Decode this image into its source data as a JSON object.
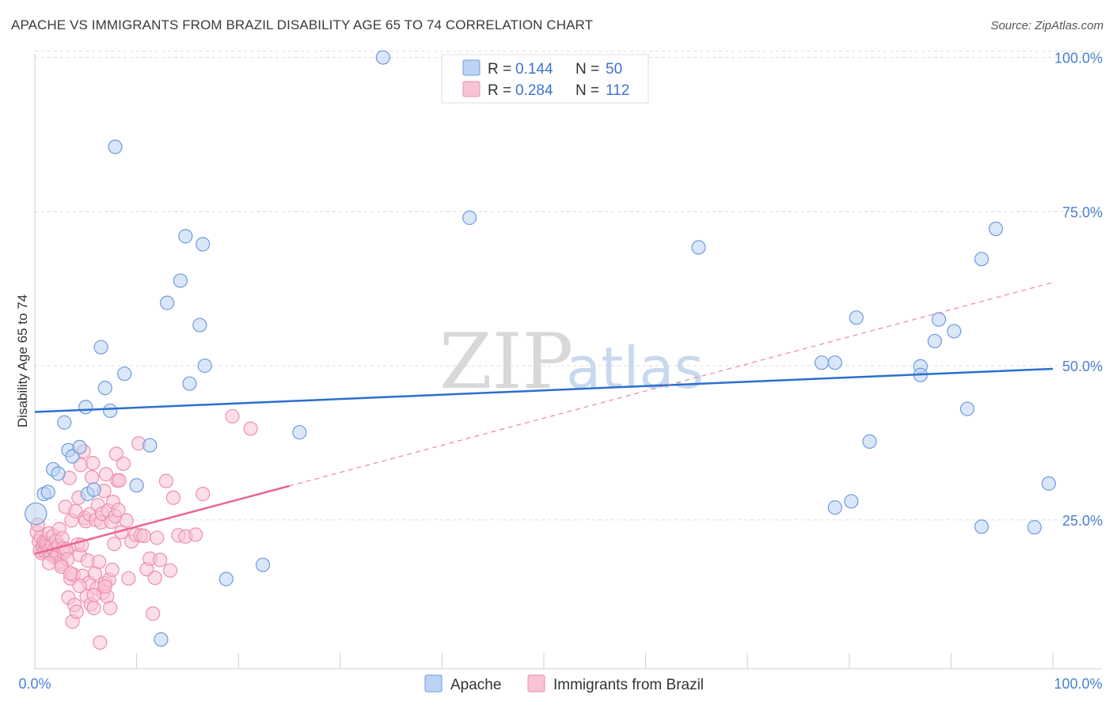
{
  "title": "APACHE VS IMMIGRANTS FROM BRAZIL DISABILITY AGE 65 TO 74 CORRELATION CHART",
  "source": "Source: ZipAtlas.com",
  "watermark": {
    "zip": "ZIP",
    "atlas": "atlas"
  },
  "legend": {
    "rows": [
      {
        "r_label": "R =",
        "r_value": "0.144",
        "n_label": "N =",
        "n_value": "50"
      },
      {
        "r_label": "R =",
        "r_value": "0.284",
        "n_label": "N =",
        "n_value": "112"
      }
    ]
  },
  "bottom_legend": {
    "series1": "Apache",
    "series2": "Immigrants from Brazil"
  },
  "colors": {
    "apache_fill": "#bcd3f3",
    "apache_stroke": "#6d9be0",
    "apache_line": "#2c6fcf",
    "brazil_fill": "#f8c3d4",
    "brazil_stroke": "#ee8fae",
    "brazil_line": "#e8688f"
  },
  "chart_data": {
    "type": "scatter",
    "title": "APACHE VS IMMIGRANTS FROM BRAZIL DISABILITY AGE 65 TO 74 CORRELATION CHART",
    "xlabel": "",
    "ylabel": "Disability Age 65 to 74",
    "xlim": [
      0,
      100
    ],
    "ylim": [
      2,
      102
    ],
    "x_tick_labels": [
      "0.0%",
      "100.0%"
    ],
    "y_ticks": [
      25,
      50,
      75,
      100
    ],
    "y_tick_labels": [
      "25.0%",
      "50.0%",
      "75.0%",
      "100.0%"
    ],
    "series": [
      {
        "name": "Apache",
        "R": 0.144,
        "N": 50,
        "trend": {
          "x": [
            0,
            100
          ],
          "y": [
            42.5,
            49.5
          ],
          "dashed_extension": false
        },
        "points": [
          [
            0.1,
            26.0,
            1.6
          ],
          [
            0.9,
            29.2,
            1
          ],
          [
            1.3,
            29.5,
            1
          ],
          [
            1.8,
            33.2,
            1
          ],
          [
            2.3,
            32.5,
            1
          ],
          [
            2.9,
            40.8,
            1
          ],
          [
            3.3,
            36.3,
            1
          ],
          [
            3.7,
            35.3,
            1
          ],
          [
            4.4,
            36.8,
            1
          ],
          [
            5.0,
            43.3,
            1
          ],
          [
            5.2,
            29.2,
            1
          ],
          [
            5.8,
            29.9,
            1
          ],
          [
            6.5,
            53.0,
            1
          ],
          [
            6.9,
            46.4,
            1
          ],
          [
            7.4,
            42.7,
            1
          ],
          [
            7.9,
            85.5,
            1
          ],
          [
            8.8,
            48.7,
            1
          ],
          [
            10.0,
            30.6,
            1
          ],
          [
            11.3,
            37.1,
            1
          ],
          [
            12.4,
            5.6,
            1
          ],
          [
            13.0,
            60.2,
            1
          ],
          [
            14.3,
            63.8,
            1
          ],
          [
            14.8,
            71.0,
            1
          ],
          [
            15.2,
            47.1,
            1
          ],
          [
            16.5,
            69.7,
            1
          ],
          [
            16.2,
            56.6,
            1
          ],
          [
            16.7,
            50.0,
            1
          ],
          [
            18.8,
            15.4,
            1
          ],
          [
            22.4,
            17.7,
            1
          ],
          [
            26.0,
            39.2,
            1
          ],
          [
            34.2,
            100.0,
            1
          ],
          [
            42.7,
            74.0,
            1
          ],
          [
            65.2,
            69.2,
            1
          ],
          [
            77.3,
            50.5,
            1
          ],
          [
            78.6,
            50.5,
            1
          ],
          [
            78.6,
            27.0,
            1
          ],
          [
            80.2,
            28.0,
            1
          ],
          [
            80.7,
            57.8,
            1
          ],
          [
            82.0,
            37.7,
            1
          ],
          [
            87.0,
            49.9,
            1
          ],
          [
            87.0,
            48.5,
            1
          ],
          [
            88.4,
            54.0,
            1
          ],
          [
            88.8,
            57.5,
            1
          ],
          [
            90.3,
            55.6,
            1
          ],
          [
            91.6,
            43.0,
            1
          ],
          [
            93.0,
            67.3,
            1
          ],
          [
            93.0,
            23.9,
            1
          ],
          [
            94.4,
            72.2,
            1
          ],
          [
            98.2,
            23.8,
            1
          ],
          [
            99.6,
            30.9,
            1
          ]
        ]
      },
      {
        "name": "Immigrants from Brazil",
        "R": 0.284,
        "N": 112,
        "trend": {
          "x": [
            0,
            25
          ],
          "y": [
            19.5,
            30.5
          ],
          "dashed_x": [
            25,
            100
          ],
          "dashed_y": [
            30.5,
            63.5
          ]
        },
        "points": [
          [
            0.2,
            23.0,
            1
          ],
          [
            0.4,
            21.5,
            1
          ],
          [
            0.5,
            20.0,
            1
          ],
          [
            0.6,
            22.2,
            1
          ],
          [
            0.7,
            19.6,
            1
          ],
          [
            0.8,
            20.8,
            1
          ],
          [
            0.9,
            21.4,
            1
          ],
          [
            1.0,
            19.9,
            1
          ],
          [
            1.1,
            21.2,
            1
          ],
          [
            1.2,
            20.7,
            1
          ],
          [
            1.3,
            20.0,
            1
          ],
          [
            1.4,
            22.8,
            1
          ],
          [
            1.5,
            20.5,
            1
          ],
          [
            1.6,
            19.4,
            1
          ],
          [
            1.7,
            21.0,
            1
          ],
          [
            1.8,
            22.4,
            1
          ],
          [
            1.9,
            20.1,
            1
          ],
          [
            2.0,
            18.9,
            1
          ],
          [
            2.1,
            21.6,
            1
          ],
          [
            2.2,
            19.2,
            1
          ],
          [
            2.3,
            20.8,
            1
          ],
          [
            2.4,
            23.5,
            1
          ],
          [
            2.5,
            18.2,
            1
          ],
          [
            2.6,
            17.8,
            1
          ],
          [
            2.7,
            22.0,
            1
          ],
          [
            2.8,
            20.4,
            1
          ],
          [
            2.9,
            19.7,
            1
          ],
          [
            3.0,
            27.1,
            1
          ],
          [
            3.1,
            20.2,
            1
          ],
          [
            3.2,
            18.6,
            1
          ],
          [
            3.3,
            12.4,
            1
          ],
          [
            3.4,
            31.8,
            1
          ],
          [
            3.5,
            15.5,
            1
          ],
          [
            3.6,
            24.9,
            1
          ],
          [
            3.7,
            8.5,
            1
          ],
          [
            3.8,
            16.1,
            1
          ],
          [
            3.9,
            11.2,
            1
          ],
          [
            4.0,
            26.4,
            1
          ],
          [
            4.1,
            10.1,
            1
          ],
          [
            4.2,
            21.0,
            1
          ],
          [
            4.3,
            28.6,
            1
          ],
          [
            4.4,
            19.3,
            1
          ],
          [
            4.5,
            33.9,
            1
          ],
          [
            4.6,
            20.9,
            1
          ],
          [
            4.7,
            15.9,
            1
          ],
          [
            4.8,
            36.1,
            1
          ],
          [
            4.9,
            25.3,
            1
          ],
          [
            5.0,
            24.8,
            1
          ],
          [
            5.1,
            12.6,
            1
          ],
          [
            5.2,
            18.4,
            1
          ],
          [
            5.3,
            14.8,
            1
          ],
          [
            5.4,
            25.9,
            1
          ],
          [
            5.5,
            11.3,
            1
          ],
          [
            5.6,
            31.9,
            1
          ],
          [
            5.7,
            34.2,
            1
          ],
          [
            5.8,
            10.7,
            1
          ],
          [
            5.9,
            16.3,
            1
          ],
          [
            6.0,
            25.0,
            1
          ],
          [
            6.1,
            13.9,
            1
          ],
          [
            6.2,
            27.4,
            1
          ],
          [
            6.3,
            18.2,
            1
          ],
          [
            6.4,
            5.1,
            1
          ],
          [
            6.5,
            24.6,
            1
          ],
          [
            6.6,
            26.0,
            1
          ],
          [
            6.7,
            13.2,
            1
          ],
          [
            6.8,
            29.7,
            1
          ],
          [
            6.9,
            14.7,
            1
          ],
          [
            7.0,
            32.4,
            1
          ],
          [
            7.1,
            12.6,
            1
          ],
          [
            7.2,
            26.5,
            1
          ],
          [
            7.3,
            15.3,
            1
          ],
          [
            7.4,
            10.7,
            1
          ],
          [
            7.5,
            24.7,
            1
          ],
          [
            7.6,
            16.9,
            1
          ],
          [
            7.7,
            27.9,
            1
          ],
          [
            7.8,
            21.1,
            1
          ],
          [
            7.9,
            25.6,
            1
          ],
          [
            8.0,
            35.7,
            1
          ],
          [
            8.1,
            31.4,
            1
          ],
          [
            8.2,
            26.6,
            1
          ],
          [
            8.3,
            31.4,
            1
          ],
          [
            8.5,
            23.0,
            1
          ],
          [
            8.7,
            34.1,
            1
          ],
          [
            9.0,
            24.9,
            1
          ],
          [
            9.2,
            15.5,
            1
          ],
          [
            9.5,
            21.5,
            1
          ],
          [
            9.9,
            22.6,
            1
          ],
          [
            10.2,
            37.4,
            1
          ],
          [
            10.4,
            22.5,
            1
          ],
          [
            10.7,
            22.4,
            1
          ],
          [
            11.0,
            17.0,
            1
          ],
          [
            11.3,
            18.7,
            1
          ],
          [
            11.6,
            9.8,
            1
          ],
          [
            11.8,
            15.6,
            1
          ],
          [
            12.0,
            22.1,
            1
          ],
          [
            12.3,
            18.5,
            1
          ],
          [
            12.9,
            31.3,
            1
          ],
          [
            13.3,
            16.8,
            1
          ],
          [
            13.6,
            28.6,
            1
          ],
          [
            14.1,
            22.5,
            1
          ],
          [
            14.8,
            22.3,
            1
          ],
          [
            15.8,
            22.6,
            1
          ],
          [
            16.5,
            29.2,
            1
          ],
          [
            19.4,
            41.8,
            1
          ],
          [
            21.2,
            39.8,
            1
          ],
          [
            0.3,
            24.2,
            1
          ],
          [
            1.4,
            18.0,
            1
          ],
          [
            2.6,
            17.4,
            1
          ],
          [
            3.5,
            16.3,
            1
          ],
          [
            4.4,
            14.3,
            1
          ],
          [
            5.8,
            12.8,
            1
          ],
          [
            6.9,
            14.2,
            1
          ]
        ]
      }
    ]
  }
}
